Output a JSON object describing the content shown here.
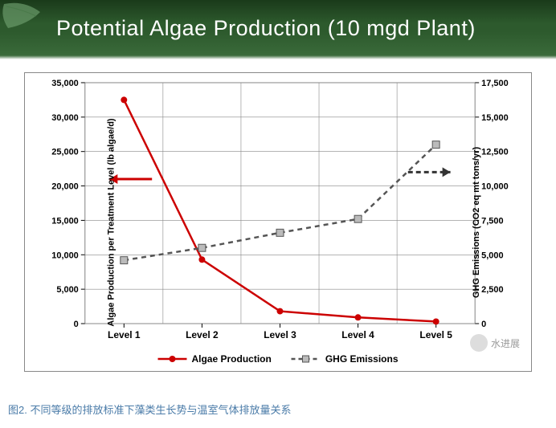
{
  "title": "Potential Algae Production (10 mgd Plant)",
  "caption": "图2. 不同等级的排放标准下藻类生长势与温室气体排放量关系",
  "watermark_text": "水进展",
  "chart": {
    "type": "line_dual_axis",
    "background_color": "#ffffff",
    "grid_color": "#888888",
    "title_color": "#ffffff",
    "title_fontsize": 27,
    "slide_bg_gradient": [
      "#1a3a1a",
      "#2d5a2d",
      "#3a6a3a"
    ],
    "categories": [
      "Level 1",
      "Level 2",
      "Level 3",
      "Level 4",
      "Level 5"
    ],
    "left_axis": {
      "label": "Algae Production per Treatment Level (lb algae/d)",
      "min": 0,
      "max": 35000,
      "tick_step": 5000,
      "ticks": [
        0,
        5000,
        10000,
        15000,
        20000,
        25000,
        30000,
        35000
      ],
      "tick_labels": [
        "0",
        "5,000",
        "10,000",
        "15,000",
        "20,000",
        "25,000",
        "30,000",
        "35,000"
      ],
      "label_fontsize": 11,
      "tick_fontsize": 11
    },
    "right_axis": {
      "label": "GHG Emissions (CO2 eq mt tons/yr)",
      "min": 0,
      "max": 17500,
      "tick_step": 2500,
      "ticks": [
        0,
        2500,
        5000,
        7500,
        10000,
        12500,
        15000,
        17500
      ],
      "tick_labels": [
        "0",
        "2,500",
        "5,000",
        "7,500",
        "10,000",
        "12,500",
        "15,000",
        "17,500"
      ],
      "label_fontsize": 11,
      "tick_fontsize": 11
    },
    "series": [
      {
        "name": "Algae Production",
        "axis": "left",
        "values": [
          32500,
          9300,
          1800,
          900,
          300
        ],
        "color": "#cc0000",
        "marker": "circle",
        "marker_fill": "#cc0000",
        "marker_size": 8,
        "line_width": 2.5,
        "dash": "solid"
      },
      {
        "name": "GHG Emissions",
        "axis": "right",
        "values": [
          4600,
          5500,
          6600,
          7600,
          13000
        ],
        "color": "#555555",
        "marker": "square",
        "marker_fill": "#bbbbbb",
        "marker_size": 9,
        "line_width": 2.5,
        "dash": "6,5"
      }
    ],
    "indicator_arrows": {
      "left": {
        "color": "#cc0000",
        "y_value": 21000,
        "direction": "left"
      },
      "right": {
        "color": "#333333",
        "y_value": 11000,
        "direction": "right",
        "dash": "6,4"
      }
    },
    "legend_labels": [
      "Algae Production",
      "GHG Emissions"
    ],
    "legend_fontsize": 12
  }
}
